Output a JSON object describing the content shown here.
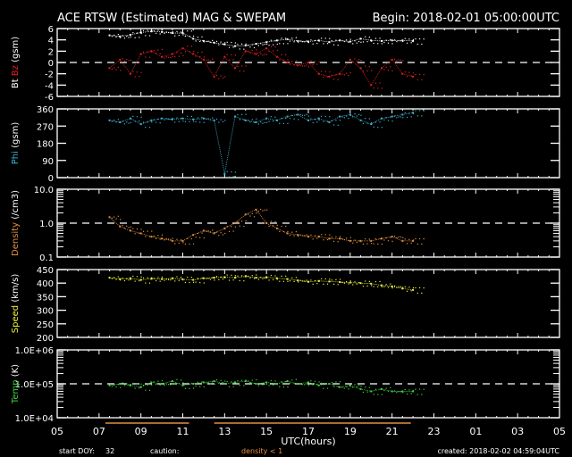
{
  "chart_data": {
    "type": "scatter",
    "title": "ACE RTSW (Estimated) MAG & SWEPAM",
    "begin": "Begin: 2018-02-01 05:00:00UTC",
    "xlabel": "UTC(hours)",
    "x_tick_labels": [
      "05",
      "07",
      "09",
      "11",
      "13",
      "15",
      "17",
      "19",
      "21",
      "23",
      "01",
      "03",
      "05"
    ],
    "x_range_hours_since_start": [
      0,
      24
    ],
    "x_hours_since_start": [
      2.5,
      3,
      3.5,
      4,
      4.5,
      5,
      5.5,
      6,
      6.5,
      7,
      7.5,
      8,
      8.5,
      9,
      9.5,
      10,
      10.5,
      11,
      11.5,
      12,
      12.5,
      13,
      13.5,
      14,
      14.5,
      15,
      15.5,
      16,
      16.5,
      17
    ],
    "panels": [
      {
        "id": "mag",
        "ylabel_parts": [
          {
            "text": "Bt",
            "color": "#ffffff"
          },
          {
            "text": " Bz",
            "color": "#e02020"
          },
          {
            "text": " (gsm)",
            "color": "#ffffff"
          }
        ],
        "scale": "linear",
        "ylim": [
          -6,
          6
        ],
        "y_tick_labels": [
          "6",
          "4",
          "2",
          "0",
          "-2",
          "-4",
          "-6"
        ],
        "y_ticks": [
          6,
          4,
          2,
          0,
          -2,
          -4,
          -6
        ],
        "ref_line": 0,
        "series": [
          {
            "name": "Bt",
            "color": "#ffffff",
            "values": [
              4.8,
              4.6,
              4.9,
              5.3,
              5.5,
              5.4,
              5.2,
              5.2,
              4.2,
              3.8,
              3.5,
              3.2,
              2.9,
              3.0,
              3.3,
              3.6,
              3.9,
              4.1,
              3.8,
              3.7,
              3.9,
              3.6,
              3.9,
              3.7,
              4.2,
              3.9,
              3.8,
              3.9,
              3.9,
              3.8
            ]
          },
          {
            "name": "Bz",
            "color": "#e02020",
            "values": [
              -1,
              0.5,
              -2,
              1.5,
              2,
              1,
              1.5,
              2.5,
              1.5,
              0.5,
              -2.5,
              1,
              -1,
              2,
              1.5,
              2.5,
              1,
              0,
              -0.5,
              0,
              -2,
              -2.5,
              -2,
              0.5,
              -1,
              -4,
              -1,
              0.5,
              -2,
              -2.5
            ]
          }
        ]
      },
      {
        "id": "phi",
        "ylabel_parts": [
          {
            "text": "Phi",
            "color": "#40b0d0"
          },
          {
            "text": " (gsm)",
            "color": "#ffffff"
          }
        ],
        "scale": "linear",
        "ylim": [
          0,
          360
        ],
        "y_tick_labels": [
          "360",
          "270",
          "180",
          "90",
          "0"
        ],
        "y_ticks": [
          360,
          270,
          180,
          90,
          0
        ],
        "series": [
          {
            "name": "Phi",
            "color": "#40b0d0",
            "values": [
              300,
              290,
              310,
              280,
              300,
              310,
              305,
              310,
              305,
              310,
              300,
              20,
              320,
              300,
              290,
              310,
              300,
              320,
              330,
              300,
              310,
              290,
              320,
              330,
              300,
              280,
              310,
              320,
              330,
              340
            ]
          }
        ]
      },
      {
        "id": "density",
        "ylabel_parts": [
          {
            "text": "Density",
            "color": "#e09040"
          },
          {
            "text": " (/cm3)",
            "color": "#ffffff"
          }
        ],
        "scale": "log",
        "ylim": [
          0.1,
          10
        ],
        "y_tick_labels": [
          "10.0",
          "1.0",
          "0.1"
        ],
        "y_ticks": [
          10,
          1,
          0.1
        ],
        "ref_line": 1,
        "series": [
          {
            "name": "Density",
            "color": "#e09040",
            "values": [
              1.5,
              0.8,
              0.6,
              0.5,
              0.4,
              0.35,
              0.3,
              0.3,
              0.45,
              0.6,
              0.5,
              0.7,
              1.0,
              1.8,
              2.5,
              1.0,
              0.7,
              0.5,
              0.45,
              0.4,
              0.4,
              0.35,
              0.35,
              0.3,
              0.3,
              0.3,
              0.35,
              0.4,
              0.3,
              0.3
            ]
          }
        ]
      },
      {
        "id": "speed",
        "ylabel_parts": [
          {
            "text": "Speed",
            "color": "#f0f040"
          },
          {
            "text": " (km/s)",
            "color": "#ffffff"
          }
        ],
        "scale": "linear",
        "ylim": [
          200,
          450
        ],
        "y_tick_labels": [
          "450",
          "400",
          "350",
          "300",
          "250",
          "200"
        ],
        "y_ticks": [
          450,
          400,
          350,
          300,
          250,
          200
        ],
        "series": [
          {
            "name": "Speed",
            "color": "#f0f040",
            "values": [
              420,
              415,
              418,
              412,
              416,
              415,
              418,
              414,
              412,
              418,
              420,
              422,
              420,
              425,
              420,
              422,
              418,
              415,
              410,
              405,
              408,
              406,
              404,
              402,
              400,
              398,
              392,
              388,
              380,
              375
            ]
          }
        ]
      },
      {
        "id": "temp",
        "ylabel_parts": [
          {
            "text": "Temp",
            "color": "#40d040"
          },
          {
            "text": " (K)",
            "color": "#ffffff"
          }
        ],
        "scale": "log",
        "ylim": [
          10000,
          1000000
        ],
        "y_tick_labels": [
          "1.0E+06",
          "1.0E+05",
          "1.0E+04"
        ],
        "y_ticks": [
          1000000,
          100000,
          10000
        ],
        "ref_line": 100000,
        "series": [
          {
            "name": "Temp",
            "color": "#40d040",
            "values": [
              90000,
              100000,
              90000,
              80000,
              110000,
              100000,
              120000,
              90000,
              100000,
              110000,
              120000,
              100000,
              110000,
              120000,
              100000,
              110000,
              100000,
              120000,
              100000,
              110000,
              90000,
              100000,
              80000,
              90000,
              70000,
              60000,
              70000,
              60000,
              60000,
              60000
            ]
          }
        ]
      }
    ],
    "caution_ranges_hours_since_start": [
      [
        2.3,
        6.3
      ],
      [
        7.5,
        16.9
      ]
    ],
    "caution_color": "#e09040"
  },
  "footer": {
    "start_doy_label": "start DOY:",
    "start_doy": "32",
    "caution_label": "caution:",
    "caution_text": "density < 1",
    "created": "created: 2018-02-02 04:59:04UTC"
  }
}
